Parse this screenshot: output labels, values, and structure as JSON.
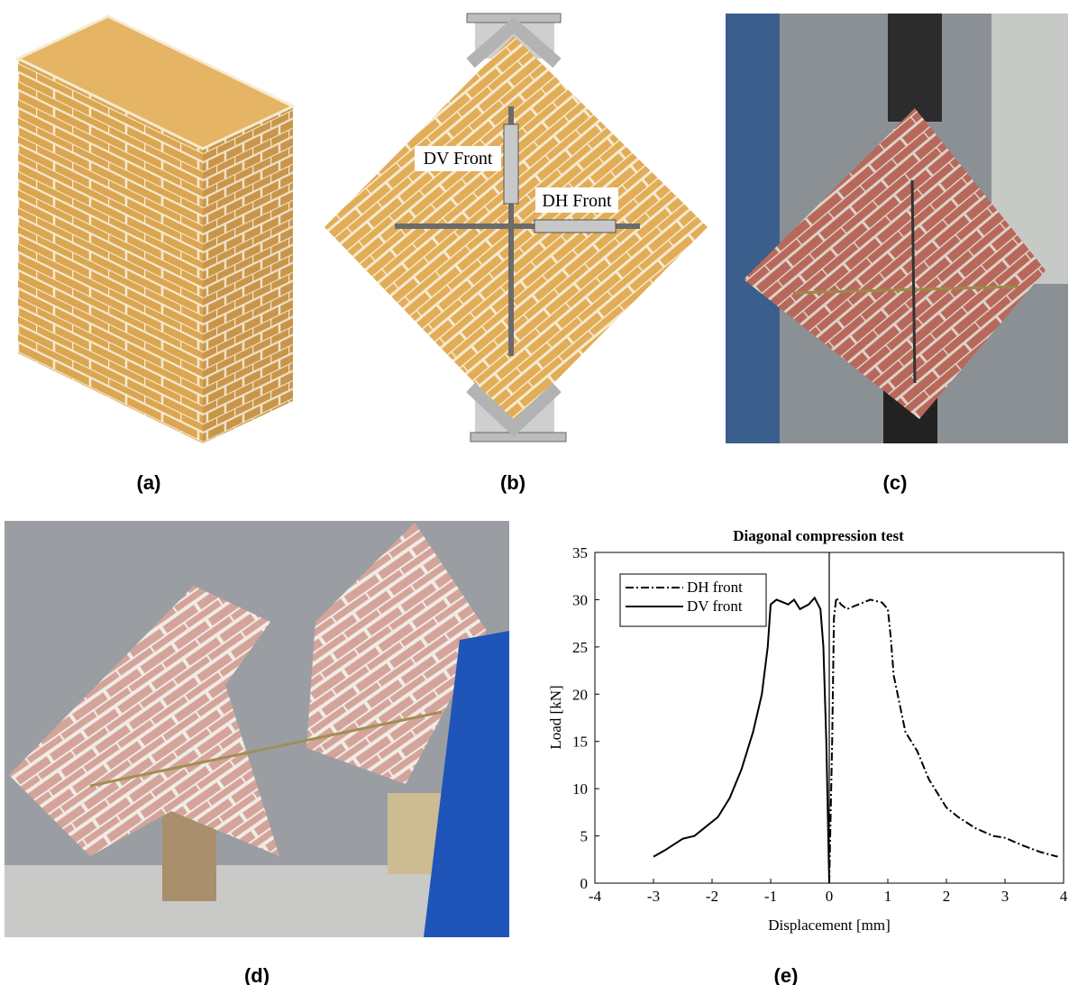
{
  "panels": [
    "(a)",
    "(b)",
    "(c)",
    "(d)",
    "(e)"
  ],
  "diagram": {
    "labels": [
      "DV Front",
      "DH Front"
    ]
  },
  "chart_data": {
    "type": "line",
    "title": "Diagonal compression test",
    "x_label": "Displacement [mm]",
    "y_label": "Load [kN]",
    "xlim": [
      -4,
      4
    ],
    "xticks": [
      -4,
      -3,
      -2,
      -1,
      0,
      1,
      2,
      3,
      4
    ],
    "ylim": [
      0,
      35
    ],
    "yticks": [
      0,
      5,
      10,
      15,
      20,
      25,
      30,
      35
    ],
    "grid": false,
    "zero_line": true,
    "legend": "upper left",
    "series": [
      {
        "name": "DH front",
        "color": "#000000",
        "linestyle": "-.",
        "x": [
          0,
          0.05,
          0.08,
          0.12,
          0.2,
          0.3,
          0.5,
          0.7,
          0.9,
          1.0,
          1.05,
          1.1,
          1.2,
          1.3,
          1.5,
          1.7,
          1.9,
          2.0,
          2.2,
          2.5,
          2.8,
          3.0,
          3.3,
          3.6,
          3.9
        ],
        "values": [
          0,
          15,
          28,
          30.2,
          29.5,
          29,
          29.5,
          30,
          29.7,
          29,
          26,
          22,
          19,
          16,
          14,
          11,
          9,
          8,
          7,
          5.8,
          5,
          4.8,
          4,
          3.3,
          2.8
        ]
      },
      {
        "name": "DV front",
        "color": "#000000",
        "linestyle": "-",
        "x": [
          -3.0,
          -2.8,
          -2.5,
          -2.3,
          -2.1,
          -1.9,
          -1.7,
          -1.5,
          -1.3,
          -1.15,
          -1.05,
          -1.0,
          -0.9,
          -0.7,
          -0.6,
          -0.5,
          -0.35,
          -0.25,
          -0.15,
          -0.1,
          -0.05,
          0
        ],
        "values": [
          2.8,
          3.5,
          4.7,
          5,
          6,
          7,
          9,
          12,
          16,
          20,
          25,
          29.5,
          30,
          29.5,
          30,
          29,
          29.5,
          30.2,
          29,
          25,
          15,
          0
        ]
      }
    ]
  }
}
